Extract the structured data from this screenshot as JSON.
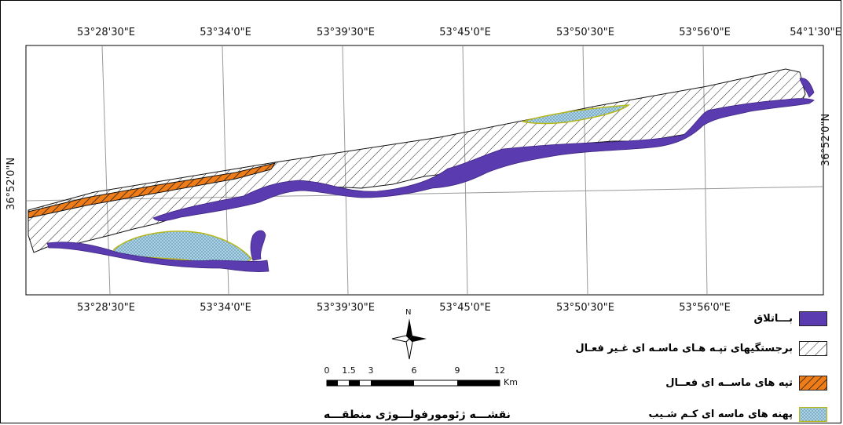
{
  "top_coordinates": [
    "53°28'30\"E",
    "53°34'0\"E",
    "53°39'30\"E",
    "53°45'0\"E",
    "53°50'30\"E",
    "53°56'0\"E",
    "54°1'30\"E"
  ],
  "bottom_coordinates": [
    "53°28'30\"E",
    "53°34'0\"E",
    "53°39'30\"E",
    "53°45'0\"E",
    "53°50'30\"E",
    "53°56'0\"E"
  ],
  "right_latitude": "36°52'0\"N",
  "left_latitude": "36°52'0\"N",
  "north_arrow_label": "N",
  "scalebar": {
    "labels": [
      "0",
      "1.5",
      "3",
      "6",
      "9",
      "12"
    ],
    "unit": "Km"
  },
  "legend": [
    {
      "label": "بـــاتلاق",
      "kind": "marsh",
      "color": "#5b3cb0"
    },
    {
      "label": "برجستگیهای تپـه هـای ماسـه ای غـیر فعـال",
      "kind": "inactive-dunes",
      "color": "#ffffff"
    },
    {
      "label": "تپه های ماســه ای فعــال",
      "kind": "active-dunes",
      "color": "#f07c18"
    },
    {
      "label": "پهنه های ماسه ای کـم شـیب",
      "kind": "low-slope-sand",
      "color": "#a8d4e8"
    }
  ],
  "map_title": "نقشـــه ژئومورفولـــوژی منطقـــه"
}
